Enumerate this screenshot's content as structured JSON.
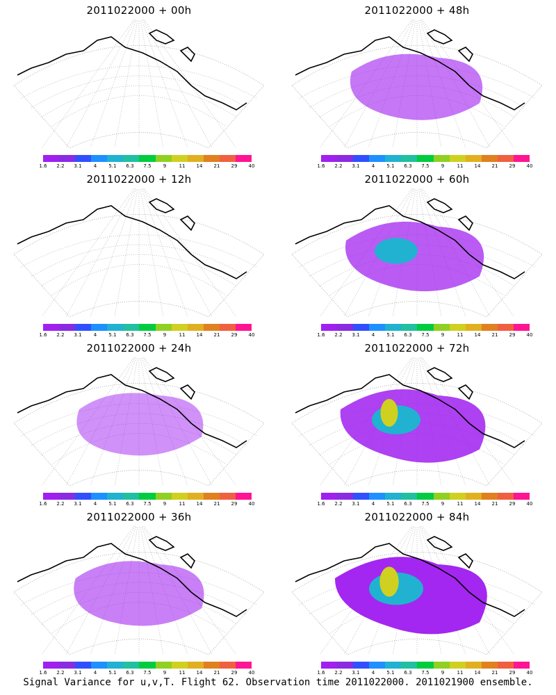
{
  "panels": [
    {
      "title": "2011022000 + 00h",
      "level": 0.02
    },
    {
      "title": "2011022000 + 48h",
      "level": 0.35
    },
    {
      "title": "2011022000 + 12h",
      "level": 0.04
    },
    {
      "title": "2011022000 + 60h",
      "level": 0.55
    },
    {
      "title": "2011022000 + 24h",
      "level": 0.15
    },
    {
      "title": "2011022000 + 72h",
      "level": 0.75
    },
    {
      "title": "2011022000 + 36h",
      "level": 0.28
    },
    {
      "title": "2011022000 + 84h",
      "level": 0.95
    }
  ],
  "colorbar": {
    "labels": [
      "1.6",
      "2.2",
      "3.1",
      "4",
      "5.1",
      "6.3",
      "7.5",
      "9",
      "11",
      "14",
      "21",
      "29",
      "40"
    ],
    "colors": [
      "#a020f0",
      "#8a2be2",
      "#3050ff",
      "#1e90ff",
      "#20b2d0",
      "#20c0a0",
      "#00cc40",
      "#90d020",
      "#d0d020",
      "#e0b020",
      "#e08020",
      "#f06040",
      "#ff1493"
    ]
  },
  "caption": "Signal Variance for u,v,T. Flight 62. Observation time 2011022000. 2011021900 ensemble."
}
